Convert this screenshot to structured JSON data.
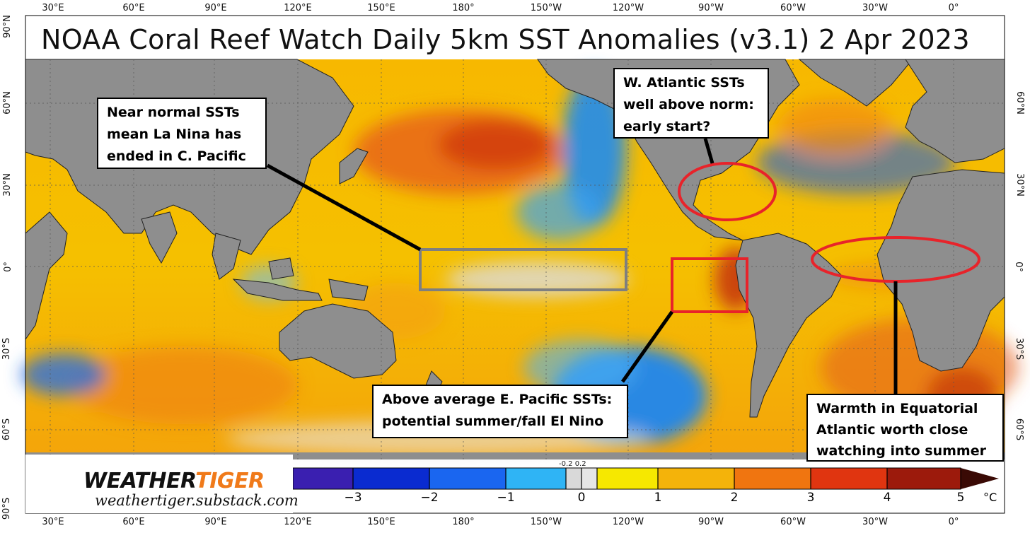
{
  "title": "NOAA Coral Reef Watch Daily 5km SST Anomalies  (v3.1)    2 Apr 2023",
  "longitude_ticks": [
    "30°E",
    "60°E",
    "90°E",
    "120°E",
    "150°E",
    "180°",
    "150°W",
    "120°W",
    "90°W",
    "60°W",
    "30°W",
    "0°"
  ],
  "latitude_ticks_left": [
    "90°N",
    "60°N",
    "30°N",
    "0°",
    "30°S",
    "60°S",
    "90°S"
  ],
  "latitude_ticks_right": [
    "60°N",
    "30°N",
    "0°",
    "30°S",
    "60°S"
  ],
  "callouts": {
    "central_pacific": "Near normal SSTs\nmean La Nina has\nended in C. Pacific",
    "west_atlantic": "W. Atlantic SSTs\nwell above norm:\nearly start?",
    "east_pacific": "Above average E. Pacific SSTs:\npotential summer/fall El Nino",
    "equatorial_atlantic": "Warmth in Equatorial\nAtlantic worth close\nwatching into summer"
  },
  "colorbar": {
    "labels": [
      "−3",
      "−2",
      "−1",
      "0",
      "1",
      "2",
      "3",
      "4",
      "5"
    ],
    "small_labels": "-0.2   0.2",
    "unit": "°C"
  },
  "logo": {
    "word_part1": "WEATHER",
    "word_part2": "TIGER",
    "url": "weathertiger.substack.com"
  },
  "colors": {
    "land": "#8e8e8e",
    "warm_yellow": "#f5c400",
    "warm_orange": "#f39a0c",
    "warm_red": "#d9440c",
    "cool_blue": "#1e8cf0",
    "deep_blue": "#0a3fd6",
    "near_zero": "#d9d9d9",
    "highlight_red": "#e8232a",
    "box_gray": "#7f7f7f",
    "brand_orange": "#f07a1a"
  }
}
